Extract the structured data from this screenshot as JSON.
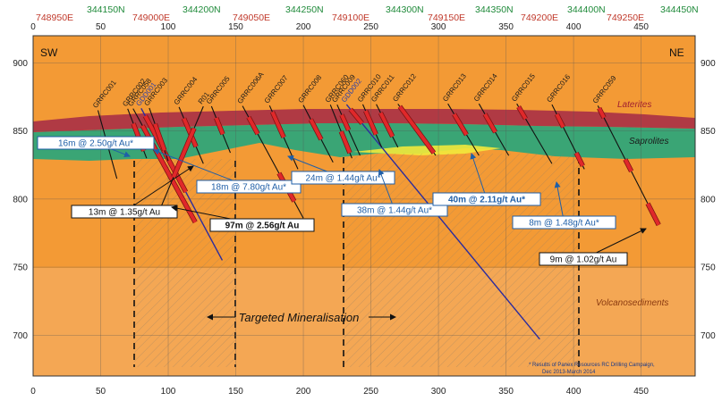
{
  "header": {
    "coords": [
      {
        "text": "748950E",
        "kind": "e"
      },
      {
        "text": "344150N",
        "kind": "n"
      },
      {
        "text": "749000E",
        "kind": "e"
      },
      {
        "text": "344200N",
        "kind": "n"
      },
      {
        "text": "749050E",
        "kind": "e"
      },
      {
        "text": "344250N",
        "kind": "n"
      },
      {
        "text": "749100E",
        "kind": "e"
      },
      {
        "text": "344300N",
        "kind": "n"
      },
      {
        "text": "749150E",
        "kind": "e"
      },
      {
        "text": "344350N",
        "kind": "n"
      },
      {
        "text": "749200E",
        "kind": "e"
      },
      {
        "text": "344400N",
        "kind": "n"
      },
      {
        "text": "749250E",
        "kind": "e"
      },
      {
        "text": "344450N",
        "kind": "n"
      }
    ]
  },
  "axes": {
    "x_ticks": [
      0,
      50,
      100,
      150,
      200,
      250,
      300,
      350,
      400,
      450
    ],
    "x_range": [
      0,
      490
    ],
    "y_ticks": [
      900,
      850,
      800,
      750,
      700
    ],
    "y_range": [
      670,
      920
    ]
  },
  "sides": {
    "left": "SW",
    "right": "NE"
  },
  "units": {
    "laterites": "Laterites",
    "saprolites": "Saprolites",
    "volcano": "Volcanosediments"
  },
  "colors": {
    "laterite": "#b03a44",
    "saprolite": "#3aa575",
    "volcano": "#f39a35",
    "intercept": "#e0282a",
    "hole_rc": "#111111",
    "hole_dd": "#2c2c9e",
    "anno_blue": "#1f5fa8",
    "anno_black": "#111111"
  },
  "holes": [
    {
      "name": "GRRC001",
      "type": "RC",
      "x0": 48,
      "x1": 62,
      "z1": 815,
      "ints": []
    },
    {
      "name": "GRRC002",
      "type": "RC",
      "x0": 70,
      "x1": 84,
      "z1": 830,
      "ints": [
        [
          0.3,
          0.85
        ]
      ]
    },
    {
      "name": "GRRC058",
      "type": "RC",
      "x0": 74,
      "x1": 120,
      "z1": 783,
      "ints": [
        [
          0.15,
          1.0
        ]
      ]
    },
    {
      "name": "GDD001",
      "type": "DD",
      "x0": 80,
      "x1": 140,
      "z1": 755,
      "ints": [
        [
          0.05,
          0.55
        ]
      ]
    },
    {
      "name": "GRRC003",
      "type": "RC",
      "x0": 86,
      "x1": 100,
      "z1": 828,
      "ints": [
        [
          0.3,
          0.8
        ]
      ]
    },
    {
      "name": "GRRC004",
      "type": "RC",
      "x0": 108,
      "x1": 126,
      "z1": 826,
      "ints": [
        [
          0.2,
          0.7
        ]
      ]
    },
    {
      "name": "GRRC005",
      "type": "RC",
      "x0": 132,
      "x1": 146,
      "z1": 834,
      "ints": [
        [
          0.25,
          0.6
        ]
      ]
    },
    {
      "name": "R01",
      "type": "RC",
      "x0": 126,
      "x1": 92,
      "z1": 788,
      "ints": [
        [
          0.2,
          0.65
        ]
      ]
    },
    {
      "name": "GRRC006A",
      "type": "RC",
      "x0": 155,
      "x1": 200,
      "z1": 786,
      "ints": [
        [
          0.1,
          0.25
        ],
        [
          0.6,
          0.85
        ]
      ]
    },
    {
      "name": "GRRC007",
      "type": "RC",
      "x0": 175,
      "x1": 196,
      "z1": 822,
      "ints": [
        [
          0.1,
          0.5
        ]
      ]
    },
    {
      "name": "GRRC008",
      "type": "RC",
      "x0": 200,
      "x1": 222,
      "z1": 827,
      "ints": [
        [
          0.25,
          0.6
        ]
      ]
    },
    {
      "name": "GRRC060",
      "type": "RC",
      "x0": 220,
      "x1": 236,
      "z1": 830,
      "ints": [
        [
          0.5,
          0.9
        ]
      ]
    },
    {
      "name": "GRRC009",
      "type": "RC",
      "x0": 225,
      "x1": 242,
      "z1": 832,
      "ints": [
        [
          0.2,
          0.5
        ]
      ]
    },
    {
      "name": "GDD002",
      "type": "DD",
      "x0": 232,
      "x1": 375,
      "z1": 697,
      "ints": [
        [
          0.02,
          0.08
        ]
      ]
    },
    {
      "name": "GRRC010",
      "type": "RC",
      "x0": 244,
      "x1": 258,
      "z1": 838,
      "ints": [
        [
          0.15,
          0.7
        ]
      ]
    },
    {
      "name": "GRRC011",
      "type": "RC",
      "x0": 254,
      "x1": 270,
      "z1": 838,
      "ints": [
        [
          0.2,
          0.75
        ]
      ]
    },
    {
      "name": "GRRC012",
      "type": "RC",
      "x0": 270,
      "x1": 298,
      "z1": 832,
      "ints": [
        [
          0.05,
          0.95
        ]
      ]
    },
    {
      "name": "GRRC013",
      "type": "RC",
      "x0": 307,
      "x1": 330,
      "z1": 832,
      "ints": [
        [
          0.2,
          0.6
        ]
      ]
    },
    {
      "name": "GRRC014",
      "type": "RC",
      "x0": 330,
      "x1": 352,
      "z1": 832,
      "ints": [
        [
          0.2,
          0.55
        ]
      ]
    },
    {
      "name": "GRRC015",
      "type": "RC",
      "x0": 358,
      "x1": 384,
      "z1": 826,
      "ints": [
        [
          0.05,
          0.25
        ]
      ]
    },
    {
      "name": "GRRC016",
      "type": "RC",
      "x0": 384,
      "x1": 408,
      "z1": 822,
      "ints": [
        [
          0.15,
          0.35
        ],
        [
          0.75,
          0.95
        ]
      ]
    },
    {
      "name": "GRRC059",
      "type": "RC",
      "x0": 418,
      "x1": 463,
      "z1": 781,
      "ints": [
        [
          0.02,
          0.1
        ],
        [
          0.45,
          0.55
        ],
        [
          0.82,
          1.0
        ]
      ]
    }
  ],
  "targeted_label": "Targeted Mineralisation",
  "annotations": [
    {
      "text": "16m @ 2.50g/t Au*",
      "style": "blue",
      "bold": false
    },
    {
      "text": "18m @ 7.80g/t Au*",
      "style": "blue",
      "bold": false
    },
    {
      "text": "24m @ 1.44g/t Au*",
      "style": "blue",
      "bold": false
    },
    {
      "text": "13m @ 1.35g/t Au",
      "style": "black",
      "bold": false
    },
    {
      "text": "97m @ 2.56g/t Au",
      "style": "black",
      "bold": true
    },
    {
      "text": "38m @ 1.44g/t Au*",
      "style": "blue",
      "bold": false
    },
    {
      "text": "40m @ 2.11g/t Au*",
      "style": "blue",
      "bold": true
    },
    {
      "text": "8m @ 1.48g/t Au*",
      "style": "blue",
      "bold": false
    },
    {
      "text": "9m @ 1.02g/t Au",
      "style": "black",
      "bold": false
    }
  ],
  "footnote": {
    "line1": "* Results of Panex Resources RC Drilling Campaign,",
    "line2": "Dec 2013-March 2014"
  }
}
